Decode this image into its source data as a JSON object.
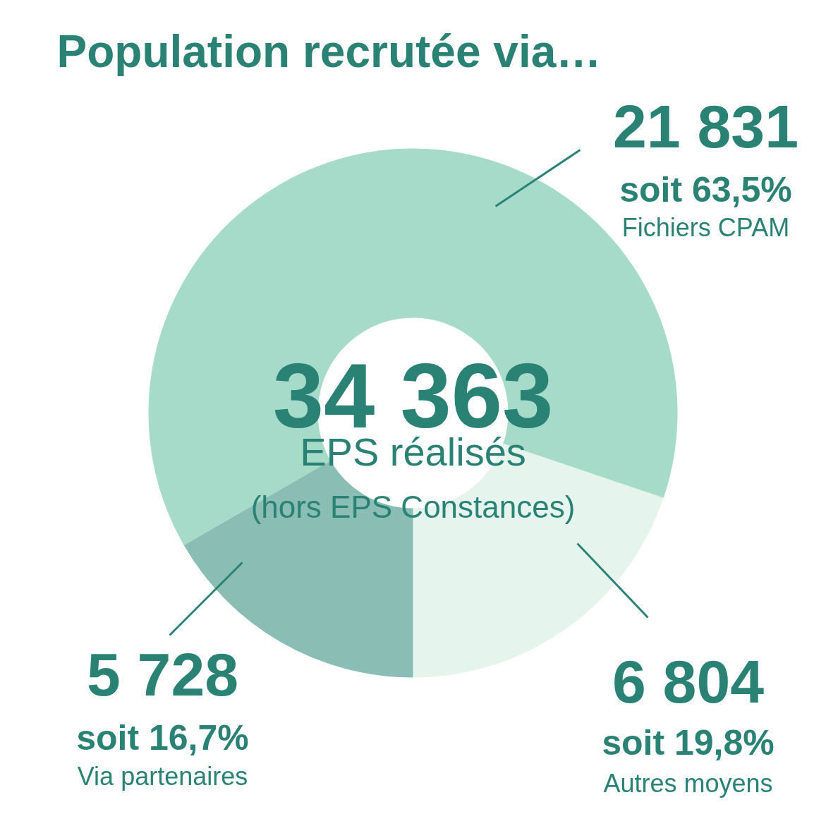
{
  "chart_data": {
    "type": "donut",
    "title": "Population recrutée via…",
    "categories": [
      "Autres moyens",
      "Fichiers CPAM",
      "Via partenaires"
    ],
    "values": [
      6804,
      21831,
      5728
    ],
    "colors": [
      "#e5f5ee",
      "#a5dbc8",
      "#8abdb4"
    ],
    "value_labels": [
      "6 804",
      "21 831",
      "5 728"
    ],
    "annotations": [
      "34 363",
      "EPS réalisés",
      "(hors EPS Constances)",
      "soit 19,8%",
      "soit 63,5%",
      "soit 16,7%"
    ]
  }
}
